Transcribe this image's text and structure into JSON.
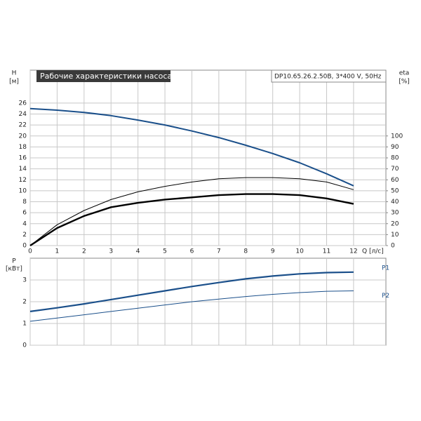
{
  "chart_data": [
    {
      "type": "line",
      "title": "Рабочие характеристики насоса",
      "subtitle": "DP10.65.26.2.50B, 3*400 V, 50Hz",
      "y_label": "H",
      "y_unit": "[м]",
      "y2_label": "eta",
      "y2_unit": "[%]",
      "x_label": "Q [л/с]",
      "x": [
        0,
        1,
        2,
        3,
        4,
        5,
        6,
        7,
        8,
        9,
        10,
        11,
        12
      ],
      "xlim": [
        0,
        13.2
      ],
      "xticks": [
        0,
        1,
        2,
        3,
        4,
        5,
        6,
        7,
        8,
        9,
        10,
        11,
        12
      ],
      "ylim": [
        0,
        32
      ],
      "yticks": [
        0,
        2,
        4,
        6,
        8,
        10,
        12,
        14,
        16,
        18,
        20,
        22,
        24,
        26
      ],
      "y2lim": [
        0,
        160
      ],
      "y2ticks": [
        0,
        10,
        20,
        30,
        40,
        50,
        60,
        70,
        80,
        90,
        100
      ],
      "grid": true,
      "series": [
        {
          "color": "#1a4f8a",
          "values": [
            25.0,
            24.7,
            24.3,
            23.7,
            22.9,
            22.0,
            20.9,
            19.7,
            18.3,
            16.8,
            15.1,
            13.1,
            10.9
          ]
        },
        {
          "color": "#000000",
          "axis": "y2",
          "values": [
            0,
            19,
            32,
            42,
            49,
            54,
            58,
            61,
            62,
            62,
            61,
            58,
            51
          ]
        },
        {
          "color": "#000000",
          "axis": "y2",
          "values": [
            0,
            16,
            27,
            35,
            39,
            42,
            44,
            46,
            47,
            47,
            46,
            43,
            38
          ]
        }
      ]
    },
    {
      "type": "line",
      "y_label": "P",
      "y_unit": "[кВт]",
      "x": [
        0,
        1,
        2,
        3,
        4,
        5,
        6,
        7,
        8,
        9,
        10,
        11,
        12
      ],
      "xlim": [
        0,
        13.2
      ],
      "xticks": [
        0,
        1,
        2,
        3,
        4,
        5,
        6,
        7,
        8,
        9,
        10,
        11,
        12
      ],
      "ylim": [
        0,
        4
      ],
      "yticks": [
        0,
        1,
        2,
        3
      ],
      "grid": true,
      "series": [
        {
          "name": "P1",
          "color": "#1a4f8a",
          "values": [
            1.55,
            1.72,
            1.9,
            2.1,
            2.3,
            2.5,
            2.7,
            2.88,
            3.05,
            3.18,
            3.28,
            3.34,
            3.36
          ]
        },
        {
          "name": "P2",
          "color": "#1a4f8a",
          "values": [
            1.1,
            1.25,
            1.4,
            1.55,
            1.7,
            1.85,
            2.0,
            2.12,
            2.24,
            2.34,
            2.42,
            2.48,
            2.5
          ]
        }
      ]
    }
  ]
}
